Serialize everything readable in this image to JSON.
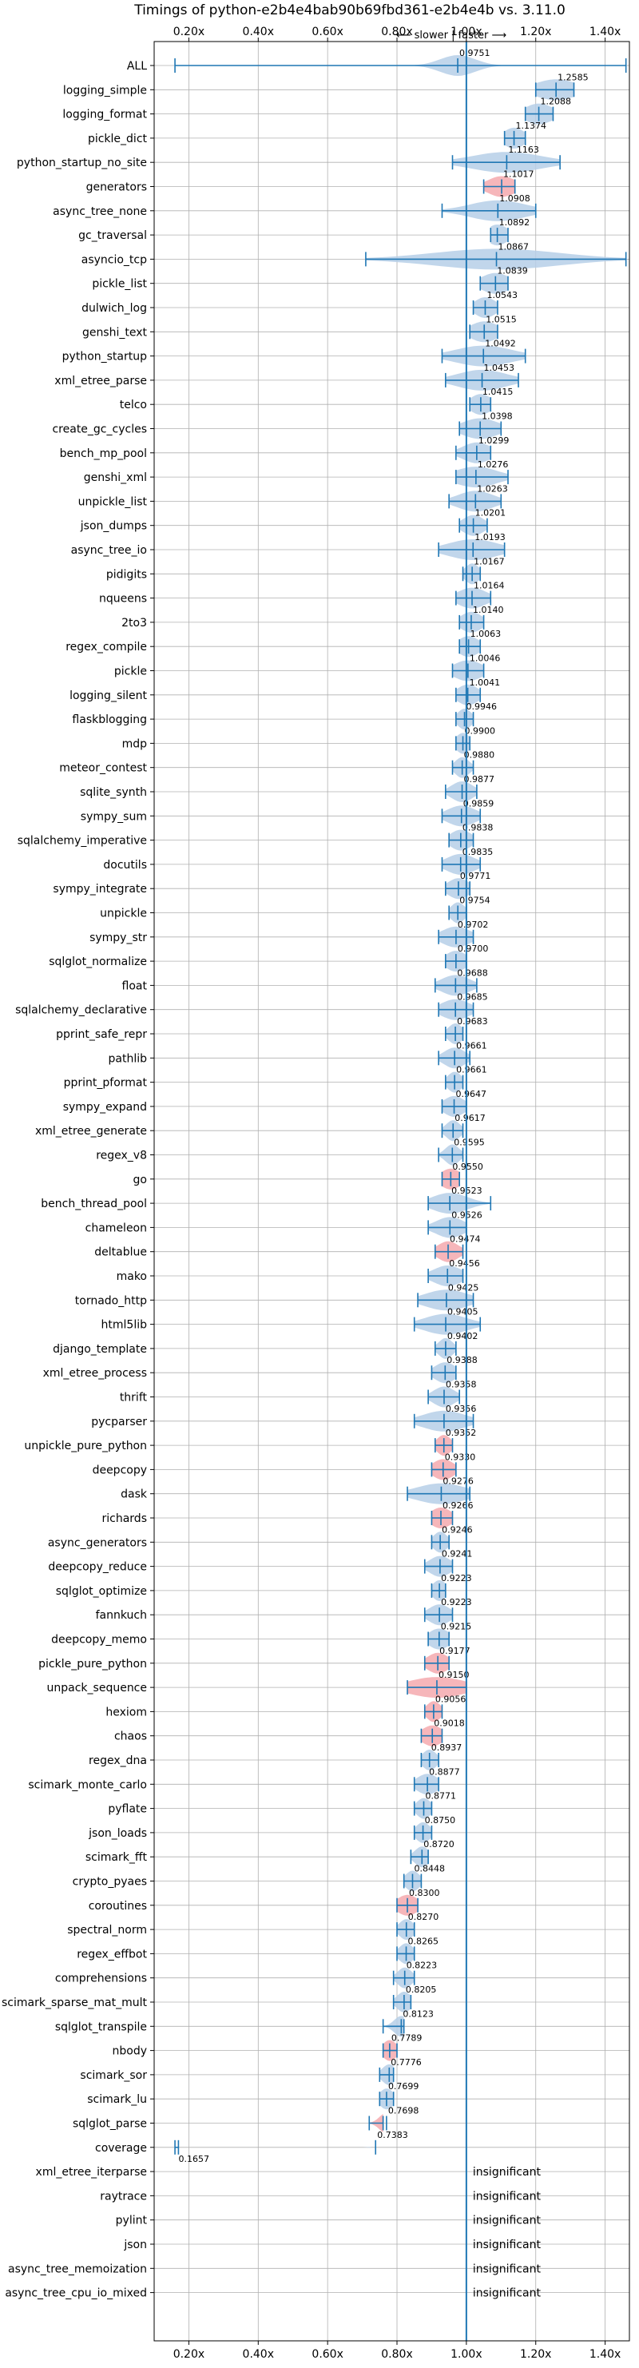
{
  "chart_data": {
    "type": "violin",
    "title": "Timings of python-e2b4e4bab90b69fbd361-e2b4e4b vs. 3.11.0",
    "direction_label": "⟵ slower | faster ⟶",
    "xlim": [
      0.1,
      1.47
    ],
    "x_ticks": [
      0.2,
      0.4,
      0.6,
      0.8,
      1.0,
      1.2,
      1.4
    ],
    "x_tick_labels": [
      "0.20x",
      "0.40x",
      "0.60x",
      "0.80x",
      "1.00x",
      "1.20x",
      "1.40x"
    ],
    "reference_line": 1.0,
    "grid": true,
    "colors": {
      "faster": "#b6cfe7",
      "slower": "#f4a9ae",
      "line": "#1f77b4",
      "grid": "#b0b0b0"
    },
    "insignificant_label": "insignificant",
    "benchmarks": [
      {
        "name": "ALL",
        "value": 0.9751,
        "value_label": "0.9751",
        "min": 0.16,
        "max": 1.46,
        "sig": true,
        "spread": 0.05
      },
      {
        "name": "logging_simple",
        "value": 1.2585,
        "value_label": "1.2585",
        "min": 1.2,
        "max": 1.31,
        "sig": true,
        "spread": 0.06
      },
      {
        "name": "logging_format",
        "value": 1.2088,
        "value_label": "1.2088",
        "min": 1.17,
        "max": 1.25,
        "sig": true,
        "spread": 0.04
      },
      {
        "name": "pickle_dict",
        "value": 1.1374,
        "value_label": "1.1374",
        "min": 1.11,
        "max": 1.17,
        "sig": true,
        "spread": 0.03
      },
      {
        "name": "python_startup_no_site",
        "value": 1.1163,
        "value_label": "1.1163",
        "min": 0.96,
        "max": 1.27,
        "sig": true,
        "spread": 0.1
      },
      {
        "name": "generators",
        "value": 1.1017,
        "value_label": "1.1017",
        "min": 1.05,
        "max": 1.14,
        "sig": true,
        "spread": 0.04,
        "slower": true
      },
      {
        "name": "async_tree_none",
        "value": 1.0908,
        "value_label": "1.0908",
        "min": 0.93,
        "max": 1.2,
        "sig": true,
        "spread": 0.08
      },
      {
        "name": "gc_traversal",
        "value": 1.0892,
        "value_label": "1.0892",
        "min": 1.07,
        "max": 1.12,
        "sig": true,
        "spread": 0.03
      },
      {
        "name": "asyncio_tcp",
        "value": 1.0867,
        "value_label": "1.0867",
        "min": 0.71,
        "max": 1.46,
        "sig": true,
        "spread": 0.18
      },
      {
        "name": "pickle_list",
        "value": 1.0839,
        "value_label": "1.0839",
        "min": 1.04,
        "max": 1.12,
        "sig": true,
        "spread": 0.04
      },
      {
        "name": "dulwich_log",
        "value": 1.0543,
        "value_label": "1.0543",
        "min": 1.02,
        "max": 1.09,
        "sig": true,
        "spread": 0.03
      },
      {
        "name": "genshi_text",
        "value": 1.0515,
        "value_label": "1.0515",
        "min": 1.01,
        "max": 1.09,
        "sig": true,
        "spread": 0.04
      },
      {
        "name": "python_startup",
        "value": 1.0492,
        "value_label": "1.0492",
        "min": 0.93,
        "max": 1.17,
        "sig": true,
        "spread": 0.08
      },
      {
        "name": "xml_etree_parse",
        "value": 1.0453,
        "value_label": "1.0453",
        "min": 0.94,
        "max": 1.15,
        "sig": true,
        "spread": 0.07
      },
      {
        "name": "telco",
        "value": 1.0415,
        "value_label": "1.0415",
        "min": 1.01,
        "max": 1.07,
        "sig": true,
        "spread": 0.03
      },
      {
        "name": "create_gc_cycles",
        "value": 1.0398,
        "value_label": "1.0398",
        "min": 0.98,
        "max": 1.1,
        "sig": true,
        "spread": 0.05
      },
      {
        "name": "bench_mp_pool",
        "value": 1.0299,
        "value_label": "1.0299",
        "min": 0.97,
        "max": 1.07,
        "sig": true,
        "spread": 0.04
      },
      {
        "name": "genshi_xml",
        "value": 1.0276,
        "value_label": "1.0276",
        "min": 0.97,
        "max": 1.12,
        "sig": true,
        "spread": 0.06
      },
      {
        "name": "unpickle_list",
        "value": 1.0263,
        "value_label": "1.0263",
        "min": 0.95,
        "max": 1.1,
        "sig": true,
        "spread": 0.05
      },
      {
        "name": "json_dumps",
        "value": 1.0201,
        "value_label": "1.0201",
        "min": 0.98,
        "max": 1.06,
        "sig": true,
        "spread": 0.03
      },
      {
        "name": "async_tree_io",
        "value": 1.0193,
        "value_label": "1.0193",
        "min": 0.92,
        "max": 1.11,
        "sig": true,
        "spread": 0.07
      },
      {
        "name": "pidigits",
        "value": 1.0167,
        "value_label": "1.0167",
        "min": 0.99,
        "max": 1.04,
        "sig": true,
        "spread": 0.02
      },
      {
        "name": "nqueens",
        "value": 1.0164,
        "value_label": "1.0164",
        "min": 0.97,
        "max": 1.07,
        "sig": true,
        "spread": 0.04
      },
      {
        "name": "2to3",
        "value": 1.014,
        "value_label": "1.0140",
        "min": 0.98,
        "max": 1.05,
        "sig": true,
        "spread": 0.03
      },
      {
        "name": "regex_compile",
        "value": 1.0063,
        "value_label": "1.0063",
        "min": 0.98,
        "max": 1.04,
        "sig": true,
        "spread": 0.03
      },
      {
        "name": "pickle",
        "value": 1.0046,
        "value_label": "1.0046",
        "min": 0.96,
        "max": 1.05,
        "sig": true,
        "spread": 0.04
      },
      {
        "name": "logging_silent",
        "value": 1.0041,
        "value_label": "1.0041",
        "min": 0.97,
        "max": 1.04,
        "sig": true,
        "spread": 0.03
      },
      {
        "name": "flaskblogging",
        "value": 0.9946,
        "value_label": "0.9946",
        "min": 0.97,
        "max": 1.02,
        "sig": true,
        "spread": 0.02
      },
      {
        "name": "mdp",
        "value": 0.99,
        "value_label": "0.9900",
        "min": 0.97,
        "max": 1.01,
        "sig": true,
        "spread": 0.02
      },
      {
        "name": "meteor_contest",
        "value": 0.988,
        "value_label": "0.9880",
        "min": 0.96,
        "max": 1.02,
        "sig": true,
        "spread": 0.02
      },
      {
        "name": "sqlite_synth",
        "value": 0.9877,
        "value_label": "0.9877",
        "min": 0.94,
        "max": 1.03,
        "sig": true,
        "spread": 0.03
      },
      {
        "name": "sympy_sum",
        "value": 0.9859,
        "value_label": "0.9859",
        "min": 0.93,
        "max": 1.04,
        "sig": true,
        "spread": 0.04
      },
      {
        "name": "sqlalchemy_imperative",
        "value": 0.9838,
        "value_label": "0.9838",
        "min": 0.95,
        "max": 1.02,
        "sig": true,
        "spread": 0.03
      },
      {
        "name": "docutils",
        "value": 0.9835,
        "value_label": "0.9835",
        "min": 0.93,
        "max": 1.04,
        "sig": true,
        "spread": 0.04
      },
      {
        "name": "sympy_integrate",
        "value": 0.9771,
        "value_label": "0.9771",
        "min": 0.94,
        "max": 1.01,
        "sig": true,
        "spread": 0.03
      },
      {
        "name": "unpickle",
        "value": 0.9754,
        "value_label": "0.9754",
        "min": 0.95,
        "max": 1.0,
        "sig": true,
        "spread": 0.02
      },
      {
        "name": "sympy_str",
        "value": 0.9702,
        "value_label": "0.9702",
        "min": 0.92,
        "max": 1.02,
        "sig": true,
        "spread": 0.04
      },
      {
        "name": "sqlglot_normalize",
        "value": 0.97,
        "value_label": "0.9700",
        "min": 0.94,
        "max": 1.0,
        "sig": true,
        "spread": 0.03
      },
      {
        "name": "float",
        "value": 0.9688,
        "value_label": "0.9688",
        "min": 0.91,
        "max": 1.03,
        "sig": true,
        "spread": 0.04
      },
      {
        "name": "sqlalchemy_declarative",
        "value": 0.9685,
        "value_label": "0.9685",
        "min": 0.92,
        "max": 1.02,
        "sig": true,
        "spread": 0.04
      },
      {
        "name": "pprint_safe_repr",
        "value": 0.9683,
        "value_label": "0.9683",
        "min": 0.94,
        "max": 0.99,
        "sig": true,
        "spread": 0.02
      },
      {
        "name": "pathlib",
        "value": 0.9661,
        "value_label": "0.9661",
        "min": 0.92,
        "max": 1.01,
        "sig": true,
        "spread": 0.03
      },
      {
        "name": "pprint_pformat",
        "value": 0.9661,
        "value_label": "0.9661",
        "min": 0.94,
        "max": 0.99,
        "sig": true,
        "spread": 0.02
      },
      {
        "name": "sympy_expand",
        "value": 0.9647,
        "value_label": "0.9647",
        "min": 0.93,
        "max": 1.0,
        "sig": true,
        "spread": 0.03
      },
      {
        "name": "xml_etree_generate",
        "value": 0.9617,
        "value_label": "0.9617",
        "min": 0.93,
        "max": 0.99,
        "sig": true,
        "spread": 0.02
      },
      {
        "name": "regex_v8",
        "value": 0.9595,
        "value_label": "0.9595",
        "min": 0.92,
        "max": 0.99,
        "sig": true,
        "spread": 0.02
      },
      {
        "name": "go",
        "value": 0.955,
        "value_label": "0.9550",
        "min": 0.93,
        "max": 0.98,
        "sig": true,
        "spread": 0.03,
        "slower": true
      },
      {
        "name": "bench_thread_pool",
        "value": 0.9523,
        "value_label": "0.9523",
        "min": 0.89,
        "max": 1.07,
        "sig": true,
        "spread": 0.05
      },
      {
        "name": "chameleon",
        "value": 0.9526,
        "value_label": "0.9526",
        "min": 0.89,
        "max": 1.0,
        "sig": true,
        "spread": 0.04
      },
      {
        "name": "deltablue",
        "value": 0.9474,
        "value_label": "0.9474",
        "min": 0.91,
        "max": 0.99,
        "sig": true,
        "spread": 0.03,
        "slower": true
      },
      {
        "name": "mako",
        "value": 0.9456,
        "value_label": "0.9456",
        "min": 0.89,
        "max": 0.99,
        "sig": true,
        "spread": 0.04
      },
      {
        "name": "tornado_http",
        "value": 0.9425,
        "value_label": "0.9425",
        "min": 0.86,
        "max": 1.02,
        "sig": true,
        "spread": 0.06
      },
      {
        "name": "html5lib",
        "value": 0.9405,
        "value_label": "0.9405",
        "min": 0.85,
        "max": 1.04,
        "sig": true,
        "spread": 0.06
      },
      {
        "name": "django_template",
        "value": 0.9402,
        "value_label": "0.9402",
        "min": 0.91,
        "max": 0.97,
        "sig": true,
        "spread": 0.02
      },
      {
        "name": "xml_etree_process",
        "value": 0.9388,
        "value_label": "0.9388",
        "min": 0.9,
        "max": 0.97,
        "sig": true,
        "spread": 0.03
      },
      {
        "name": "thrift",
        "value": 0.9358,
        "value_label": "0.9358",
        "min": 0.89,
        "max": 0.98,
        "sig": true,
        "spread": 0.03
      },
      {
        "name": "pycparser",
        "value": 0.9356,
        "value_label": "0.9356",
        "min": 0.85,
        "max": 1.02,
        "sig": true,
        "spread": 0.06
      },
      {
        "name": "unpickle_pure_python",
        "value": 0.9352,
        "value_label": "0.9352",
        "min": 0.91,
        "max": 0.96,
        "sig": true,
        "spread": 0.02,
        "slower": true
      },
      {
        "name": "deepcopy",
        "value": 0.933,
        "value_label": "0.9330",
        "min": 0.9,
        "max": 0.97,
        "sig": true,
        "spread": 0.03,
        "slower": true
      },
      {
        "name": "dask",
        "value": 0.9276,
        "value_label": "0.9276",
        "min": 0.83,
        "max": 1.01,
        "sig": true,
        "spread": 0.07
      },
      {
        "name": "richards",
        "value": 0.9266,
        "value_label": "0.9266",
        "min": 0.9,
        "max": 0.96,
        "sig": true,
        "spread": 0.03,
        "slower": true
      },
      {
        "name": "async_generators",
        "value": 0.9246,
        "value_label": "0.9246",
        "min": 0.9,
        "max": 0.95,
        "sig": true,
        "spread": 0.02
      },
      {
        "name": "deepcopy_reduce",
        "value": 0.9241,
        "value_label": "0.9241",
        "min": 0.88,
        "max": 0.96,
        "sig": true,
        "spread": 0.03
      },
      {
        "name": "sqlglot_optimize",
        "value": 0.9223,
        "value_label": "0.9223",
        "min": 0.9,
        "max": 0.94,
        "sig": true,
        "spread": 0.02
      },
      {
        "name": "fannkuch",
        "value": 0.9223,
        "value_label": "0.9223",
        "min": 0.88,
        "max": 0.96,
        "sig": true,
        "spread": 0.03
      },
      {
        "name": "deepcopy_memo",
        "value": 0.9215,
        "value_label": "0.9215",
        "min": 0.89,
        "max": 0.95,
        "sig": true,
        "spread": 0.03
      },
      {
        "name": "pickle_pure_python",
        "value": 0.9177,
        "value_label": "0.9177",
        "min": 0.88,
        "max": 0.95,
        "sig": true,
        "spread": 0.03,
        "slower": true
      },
      {
        "name": "unpack_sequence",
        "value": 0.915,
        "value_label": "0.9150",
        "min": 0.83,
        "max": 1.0,
        "sig": true,
        "spread": 0.08,
        "slower": true
      },
      {
        "name": "hexiom",
        "value": 0.9056,
        "value_label": "0.9056",
        "min": 0.88,
        "max": 0.93,
        "sig": true,
        "spread": 0.02,
        "slower": true
      },
      {
        "name": "chaos",
        "value": 0.9018,
        "value_label": "0.9018",
        "min": 0.87,
        "max": 0.93,
        "sig": true,
        "spread": 0.03,
        "slower": true
      },
      {
        "name": "regex_dna",
        "value": 0.8937,
        "value_label": "0.8937",
        "min": 0.87,
        "max": 0.92,
        "sig": true,
        "spread": 0.02
      },
      {
        "name": "scimark_monte_carlo",
        "value": 0.8877,
        "value_label": "0.8877",
        "min": 0.85,
        "max": 0.92,
        "sig": true,
        "spread": 0.03
      },
      {
        "name": "pyflate",
        "value": 0.8771,
        "value_label": "0.8771",
        "min": 0.85,
        "max": 0.9,
        "sig": true,
        "spread": 0.02
      },
      {
        "name": "json_loads",
        "value": 0.875,
        "value_label": "0.8750",
        "min": 0.85,
        "max": 0.9,
        "sig": true,
        "spread": 0.02
      },
      {
        "name": "scimark_fft",
        "value": 0.872,
        "value_label": "0.8720",
        "min": 0.84,
        "max": 0.89,
        "sig": true,
        "spread": 0.02
      },
      {
        "name": "crypto_pyaes",
        "value": 0.8448,
        "value_label": "0.8448",
        "min": 0.82,
        "max": 0.87,
        "sig": true,
        "spread": 0.02
      },
      {
        "name": "coroutines",
        "value": 0.83,
        "value_label": "0.8300",
        "min": 0.8,
        "max": 0.86,
        "sig": true,
        "spread": 0.03,
        "slower": true
      },
      {
        "name": "spectral_norm",
        "value": 0.827,
        "value_label": "0.8270",
        "min": 0.8,
        "max": 0.85,
        "sig": true,
        "spread": 0.02
      },
      {
        "name": "regex_effbot",
        "value": 0.8265,
        "value_label": "0.8265",
        "min": 0.8,
        "max": 0.85,
        "sig": true,
        "spread": 0.02
      },
      {
        "name": "comprehensions",
        "value": 0.8223,
        "value_label": "0.8223",
        "min": 0.79,
        "max": 0.85,
        "sig": true,
        "spread": 0.02
      },
      {
        "name": "scimark_sparse_mat_mult",
        "value": 0.8205,
        "value_label": "0.8205",
        "min": 0.79,
        "max": 0.84,
        "sig": true,
        "spread": 0.02
      },
      {
        "name": "sqlglot_transpile",
        "value": 0.8123,
        "value_label": "0.8123",
        "min": 0.76,
        "max": 0.82,
        "sig": true,
        "spread": 0.02
      },
      {
        "name": "nbody",
        "value": 0.7789,
        "value_label": "0.7789",
        "min": 0.76,
        "max": 0.8,
        "sig": true,
        "spread": 0.02,
        "slower": true
      },
      {
        "name": "scimark_sor",
        "value": 0.7776,
        "value_label": "0.7776",
        "min": 0.75,
        "max": 0.79,
        "sig": true,
        "spread": 0.02
      },
      {
        "name": "scimark_lu",
        "value": 0.7699,
        "value_label": "0.7699",
        "min": 0.75,
        "max": 0.79,
        "sig": true,
        "spread": 0.02
      },
      {
        "name": "sqlglot_parse",
        "value": 0.7698,
        "value_label": "0.7698",
        "min": 0.72,
        "max": 0.76,
        "sig": true,
        "spread": 0.02,
        "slower": true
      },
      {
        "name": "coverage",
        "value": 0.7383,
        "value_label": "0.7383",
        "min": 0.16,
        "max": 0.17,
        "sig": true,
        "spread": 0.005
      },
      {
        "name": "xml_etree_iterparse",
        "value": 0.1657,
        "value_label": "0.1657",
        "sig": false
      },
      {
        "name": "raytrace",
        "sig": false
      },
      {
        "name": "pylint",
        "sig": false
      },
      {
        "name": "json",
        "sig": false
      },
      {
        "name": "async_tree_memoization",
        "sig": false
      },
      {
        "name": "async_tree_cpu_io_mixed",
        "sig": false
      }
    ]
  }
}
